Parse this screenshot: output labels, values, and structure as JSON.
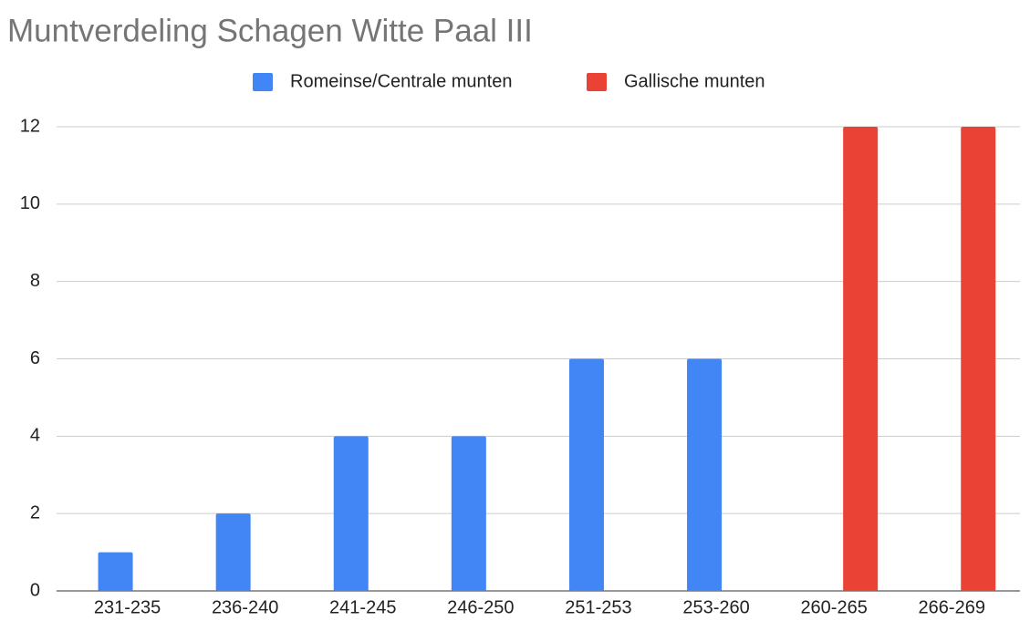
{
  "chart_data": {
    "type": "bar",
    "title": "Muntverdeling Schagen Witte Paal III",
    "categories": [
      "231-235",
      "236-240",
      "241-245",
      "246-250",
      "251-253",
      "253-260",
      "260-265",
      "266-269"
    ],
    "series": [
      {
        "name": "Romeinse/Centrale munten",
        "color": "#4285f4",
        "values": [
          1,
          2,
          4,
          4,
          6,
          6,
          null,
          null
        ]
      },
      {
        "name": "Gallische munten",
        "color": "#ea4335",
        "values": [
          null,
          null,
          null,
          null,
          null,
          null,
          12,
          12
        ]
      }
    ],
    "ylim": [
      0,
      12
    ],
    "yticks": [
      0,
      2,
      4,
      6,
      8,
      10,
      12
    ],
    "grid": true,
    "legend": "top"
  }
}
